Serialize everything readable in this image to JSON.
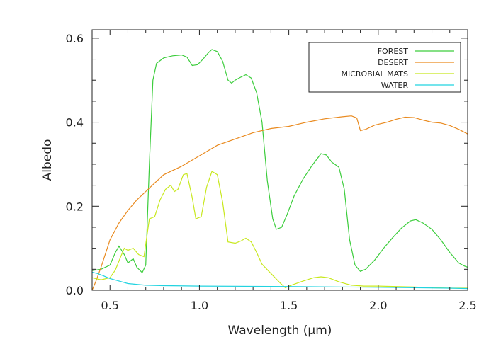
{
  "chart_data": {
    "type": "line",
    "title": "",
    "xlabel": "Wavelength (μm)",
    "ylabel": "Albedo",
    "xlim": [
      0.4,
      2.5
    ],
    "ylim": [
      0.0,
      0.62
    ],
    "x_ticks": [
      0.5,
      1.0,
      1.5,
      2.0,
      2.5
    ],
    "x_tick_labels": [
      "0.5",
      "1.0",
      "1.5",
      "2.0",
      "2.5"
    ],
    "y_ticks": [
      0.0,
      0.2,
      0.4,
      0.6
    ],
    "y_tick_labels": [
      "0.0",
      "0.2",
      "0.4",
      "0.6"
    ],
    "grid": false,
    "legend_position": "top-right",
    "series": [
      {
        "name": "FOREST",
        "color": "#3ccd3c",
        "points": [
          [
            0.4,
            0.047
          ],
          [
            0.45,
            0.05
          ],
          [
            0.5,
            0.06
          ],
          [
            0.53,
            0.09
          ],
          [
            0.55,
            0.105
          ],
          [
            0.58,
            0.085
          ],
          [
            0.6,
            0.065
          ],
          [
            0.63,
            0.075
          ],
          [
            0.65,
            0.055
          ],
          [
            0.68,
            0.042
          ],
          [
            0.7,
            0.06
          ],
          [
            0.72,
            0.3
          ],
          [
            0.74,
            0.5
          ],
          [
            0.76,
            0.54
          ],
          [
            0.8,
            0.553
          ],
          [
            0.85,
            0.558
          ],
          [
            0.9,
            0.56
          ],
          [
            0.93,
            0.555
          ],
          [
            0.96,
            0.535
          ],
          [
            0.99,
            0.537
          ],
          [
            1.02,
            0.55
          ],
          [
            1.05,
            0.565
          ],
          [
            1.07,
            0.573
          ],
          [
            1.1,
            0.568
          ],
          [
            1.13,
            0.545
          ],
          [
            1.16,
            0.5
          ],
          [
            1.18,
            0.493
          ],
          [
            1.2,
            0.5
          ],
          [
            1.23,
            0.507
          ],
          [
            1.26,
            0.513
          ],
          [
            1.29,
            0.505
          ],
          [
            1.32,
            0.47
          ],
          [
            1.35,
            0.4
          ],
          [
            1.38,
            0.26
          ],
          [
            1.41,
            0.17
          ],
          [
            1.43,
            0.145
          ],
          [
            1.46,
            0.15
          ],
          [
            1.49,
            0.18
          ],
          [
            1.53,
            0.225
          ],
          [
            1.58,
            0.265
          ],
          [
            1.63,
            0.297
          ],
          [
            1.68,
            0.325
          ],
          [
            1.71,
            0.322
          ],
          [
            1.74,
            0.305
          ],
          [
            1.78,
            0.293
          ],
          [
            1.81,
            0.24
          ],
          [
            1.84,
            0.12
          ],
          [
            1.87,
            0.06
          ],
          [
            1.9,
            0.045
          ],
          [
            1.93,
            0.05
          ],
          [
            1.98,
            0.072
          ],
          [
            2.03,
            0.1
          ],
          [
            2.08,
            0.125
          ],
          [
            2.13,
            0.148
          ],
          [
            2.18,
            0.165
          ],
          [
            2.21,
            0.168
          ],
          [
            2.25,
            0.16
          ],
          [
            2.3,
            0.145
          ],
          [
            2.35,
            0.12
          ],
          [
            2.4,
            0.09
          ],
          [
            2.45,
            0.065
          ],
          [
            2.48,
            0.058
          ],
          [
            2.5,
            0.055
          ]
        ]
      },
      {
        "name": "DESERT",
        "color": "#e98a1f",
        "points": [
          [
            0.4,
            0.0
          ],
          [
            0.42,
            0.02
          ],
          [
            0.45,
            0.055
          ],
          [
            0.5,
            0.12
          ],
          [
            0.55,
            0.16
          ],
          [
            0.6,
            0.19
          ],
          [
            0.65,
            0.215
          ],
          [
            0.7,
            0.235
          ],
          [
            0.75,
            0.255
          ],
          [
            0.8,
            0.275
          ],
          [
            0.9,
            0.295
          ],
          [
            1.0,
            0.32
          ],
          [
            1.1,
            0.345
          ],
          [
            1.2,
            0.36
          ],
          [
            1.3,
            0.375
          ],
          [
            1.4,
            0.385
          ],
          [
            1.5,
            0.39
          ],
          [
            1.6,
            0.4
          ],
          [
            1.7,
            0.408
          ],
          [
            1.8,
            0.413
          ],
          [
            1.85,
            0.415
          ],
          [
            1.88,
            0.41
          ],
          [
            1.9,
            0.38
          ],
          [
            1.93,
            0.383
          ],
          [
            1.98,
            0.393
          ],
          [
            2.05,
            0.4
          ],
          [
            2.1,
            0.407
          ],
          [
            2.15,
            0.412
          ],
          [
            2.2,
            0.411
          ],
          [
            2.25,
            0.405
          ],
          [
            2.3,
            0.4
          ],
          [
            2.35,
            0.398
          ],
          [
            2.4,
            0.392
          ],
          [
            2.45,
            0.383
          ],
          [
            2.5,
            0.372
          ]
        ]
      },
      {
        "name": "MICROBIAL MATS",
        "color": "#c8e81e",
        "points": [
          [
            0.4,
            0.03
          ],
          [
            0.45,
            0.025
          ],
          [
            0.5,
            0.03
          ],
          [
            0.53,
            0.048
          ],
          [
            0.56,
            0.08
          ],
          [
            0.58,
            0.1
          ],
          [
            0.6,
            0.095
          ],
          [
            0.63,
            0.1
          ],
          [
            0.66,
            0.085
          ],
          [
            0.69,
            0.08
          ],
          [
            0.72,
            0.17
          ],
          [
            0.75,
            0.175
          ],
          [
            0.78,
            0.215
          ],
          [
            0.81,
            0.24
          ],
          [
            0.84,
            0.25
          ],
          [
            0.86,
            0.235
          ],
          [
            0.88,
            0.24
          ],
          [
            0.91,
            0.275
          ],
          [
            0.93,
            0.278
          ],
          [
            0.96,
            0.22
          ],
          [
            0.98,
            0.17
          ],
          [
            1.01,
            0.175
          ],
          [
            1.04,
            0.245
          ],
          [
            1.07,
            0.283
          ],
          [
            1.1,
            0.275
          ],
          [
            1.13,
            0.21
          ],
          [
            1.16,
            0.115
          ],
          [
            1.2,
            0.112
          ],
          [
            1.23,
            0.117
          ],
          [
            1.26,
            0.124
          ],
          [
            1.29,
            0.115
          ],
          [
            1.32,
            0.09
          ],
          [
            1.35,
            0.062
          ],
          [
            1.4,
            0.04
          ],
          [
            1.45,
            0.018
          ],
          [
            1.48,
            0.006
          ],
          [
            1.52,
            0.013
          ],
          [
            1.58,
            0.022
          ],
          [
            1.64,
            0.03
          ],
          [
            1.68,
            0.032
          ],
          [
            1.72,
            0.03
          ],
          [
            1.78,
            0.02
          ],
          [
            1.85,
            0.012
          ],
          [
            1.92,
            0.01
          ],
          [
            2.0,
            0.01
          ],
          [
            2.1,
            0.009
          ],
          [
            2.2,
            0.008
          ],
          [
            2.3,
            0.006
          ],
          [
            2.4,
            0.005
          ],
          [
            2.5,
            0.005
          ]
        ]
      },
      {
        "name": "WATER",
        "color": "#22d3e0",
        "points": [
          [
            0.4,
            0.043
          ],
          [
            0.43,
            0.04
          ],
          [
            0.46,
            0.035
          ],
          [
            0.5,
            0.028
          ],
          [
            0.55,
            0.022
          ],
          [
            0.6,
            0.016
          ],
          [
            0.7,
            0.012
          ],
          [
            0.8,
            0.011
          ],
          [
            1.0,
            0.01
          ],
          [
            1.5,
            0.009
          ],
          [
            2.0,
            0.007
          ],
          [
            2.4,
            0.005
          ],
          [
            2.5,
            0.004
          ]
        ]
      }
    ]
  }
}
